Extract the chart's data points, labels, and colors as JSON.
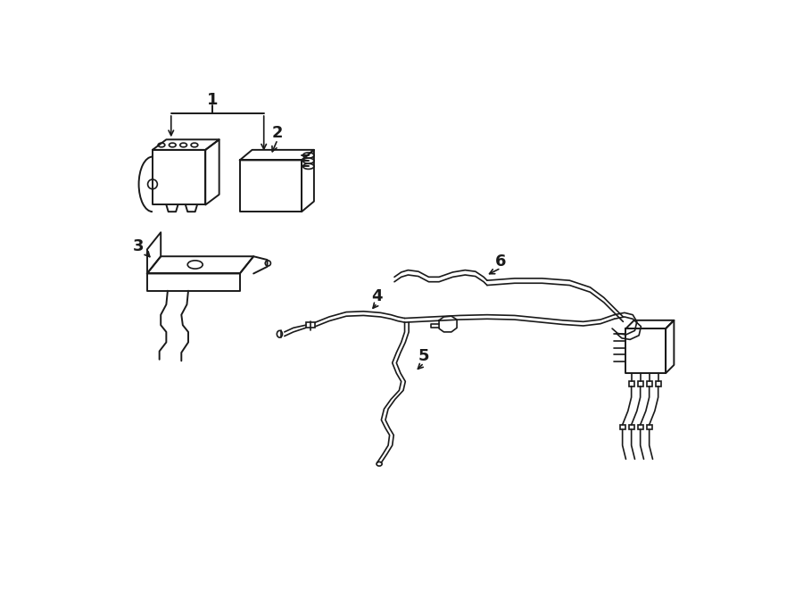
{
  "background_color": "#ffffff",
  "line_color": "#1a1a1a",
  "fig_width": 9.0,
  "fig_height": 6.61,
  "dpi": 100,
  "label_color": "#000000",
  "label_fontsize": 13
}
